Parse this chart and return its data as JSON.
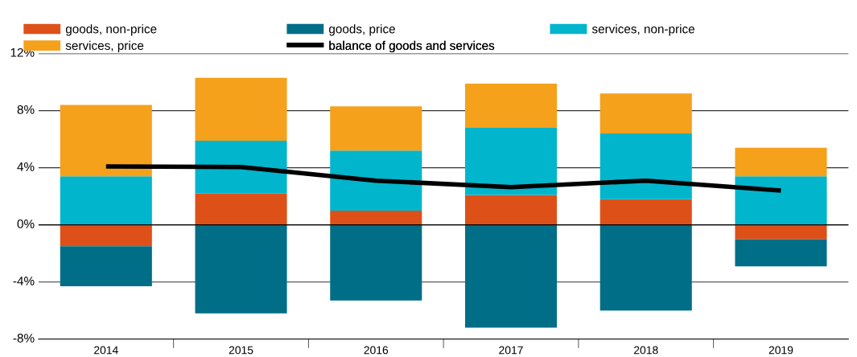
{
  "chart_data": {
    "type": "bar",
    "stacked": true,
    "categories": [
      "2014",
      "2015",
      "2016",
      "2017",
      "2018",
      "2019"
    ],
    "series": [
      {
        "name": "goods, non-price",
        "color": "#dd5119",
        "values": [
          -1.5,
          2.2,
          1.0,
          2.1,
          1.8,
          -1.0
        ]
      },
      {
        "name": "goods, price",
        "color": "#006e87",
        "values": [
          -2.8,
          -6.2,
          -5.3,
          -7.2,
          -6.0,
          -1.9
        ]
      },
      {
        "name": "services, non-price",
        "color": "#00b5cc",
        "values": [
          3.4,
          3.7,
          4.2,
          4.7,
          4.6,
          3.4
        ]
      },
      {
        "name": "services, price",
        "color": "#f5a11c",
        "values": [
          5.0,
          4.4,
          3.1,
          3.1,
          2.8,
          2.0
        ]
      },
      {
        "name": "balance of goods and services",
        "type": "line",
        "color": "#000000",
        "values": [
          4.1,
          4.05,
          3.1,
          2.65,
          3.1,
          2.4
        ]
      }
    ],
    "ylim": [
      -8,
      12
    ],
    "yticks": [
      {
        "value": -8,
        "label": "-8%"
      },
      {
        "value": -4,
        "label": "-4%"
      },
      {
        "value": 0,
        "label": "0%"
      },
      {
        "value": 4,
        "label": "4%"
      },
      {
        "value": 8,
        "label": "8%"
      },
      {
        "value": 12,
        "label": "12%"
      }
    ],
    "grid": "y",
    "legend": "top",
    "marker": "none",
    "line_style": "solid"
  }
}
